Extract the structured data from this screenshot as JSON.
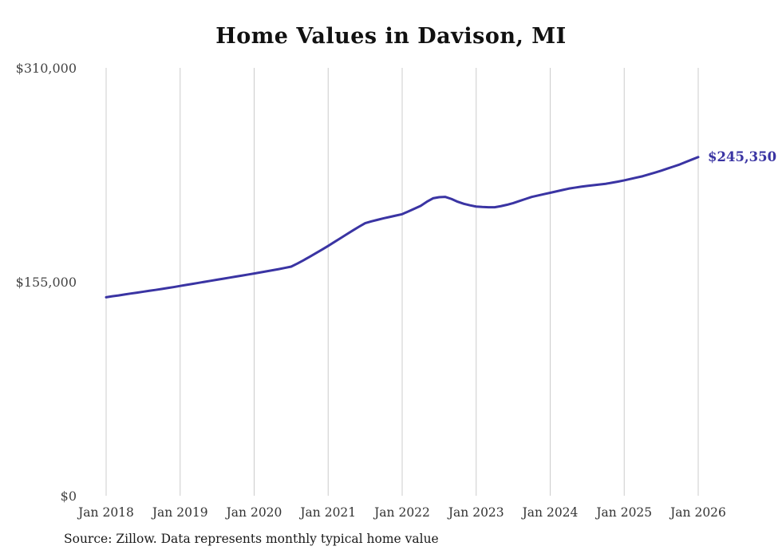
{
  "chart_data": {
    "type": "line",
    "title": "Home Values in Davison, MI",
    "xlabel": "",
    "ylabel": "",
    "ylim": [
      0,
      310000
    ],
    "grid": "vertical-only",
    "legend": "none",
    "x_interval": "month",
    "x_start": "Jan 2018",
    "x_end": "Jan 2026",
    "x_ticks": [
      "Jan 2018",
      "Jan 2019",
      "Jan 2020",
      "Jan 2021",
      "Jan 2022",
      "Jan 2023",
      "Jan 2024",
      "Jan 2025",
      "Jan 2026"
    ],
    "y_ticks": [
      {
        "value": 0,
        "label": "$0"
      },
      {
        "value": 155000,
        "label": "$155,000"
      },
      {
        "value": 310000,
        "label": "$310,000"
      }
    ],
    "end_label": "$245,350",
    "line_color": "#3A34A3",
    "grid_color": "#cccccc",
    "series": [
      {
        "name": "Typical home value",
        "monthly_start": "2018-01",
        "values": [
          143800,
          144500,
          145100,
          145800,
          146500,
          147100,
          147800,
          148500,
          149100,
          149800,
          150500,
          151200,
          152000,
          152750,
          153500,
          154250,
          155000,
          155750,
          156500,
          157250,
          158000,
          158750,
          159500,
          160250,
          161000,
          161800,
          162600,
          163400,
          164200,
          165100,
          166000,
          168200,
          170600,
          173100,
          175700,
          178300,
          181000,
          183800,
          186600,
          189400,
          192200,
          194900,
          197500,
          198800,
          199900,
          201000,
          202000,
          203000,
          204000,
          206000,
          208000,
          210000,
          213000,
          215500,
          216300,
          216500,
          215000,
          213000,
          211500,
          210400,
          209500,
          209200,
          209000,
          209000,
          209800,
          210800,
          212000,
          213500,
          215000,
          216500,
          217500,
          218500,
          219500,
          220500,
          221500,
          222500,
          223200,
          223900,
          224500,
          225000,
          225500,
          226000,
          226800,
          227600,
          228500,
          229500,
          230500,
          231500,
          232800,
          234100,
          235500,
          237000,
          238500,
          240000,
          241800,
          243600,
          245350
        ]
      }
    ]
  },
  "footer": {
    "source": "Source: Zillow. Data represents monthly typical home value"
  }
}
